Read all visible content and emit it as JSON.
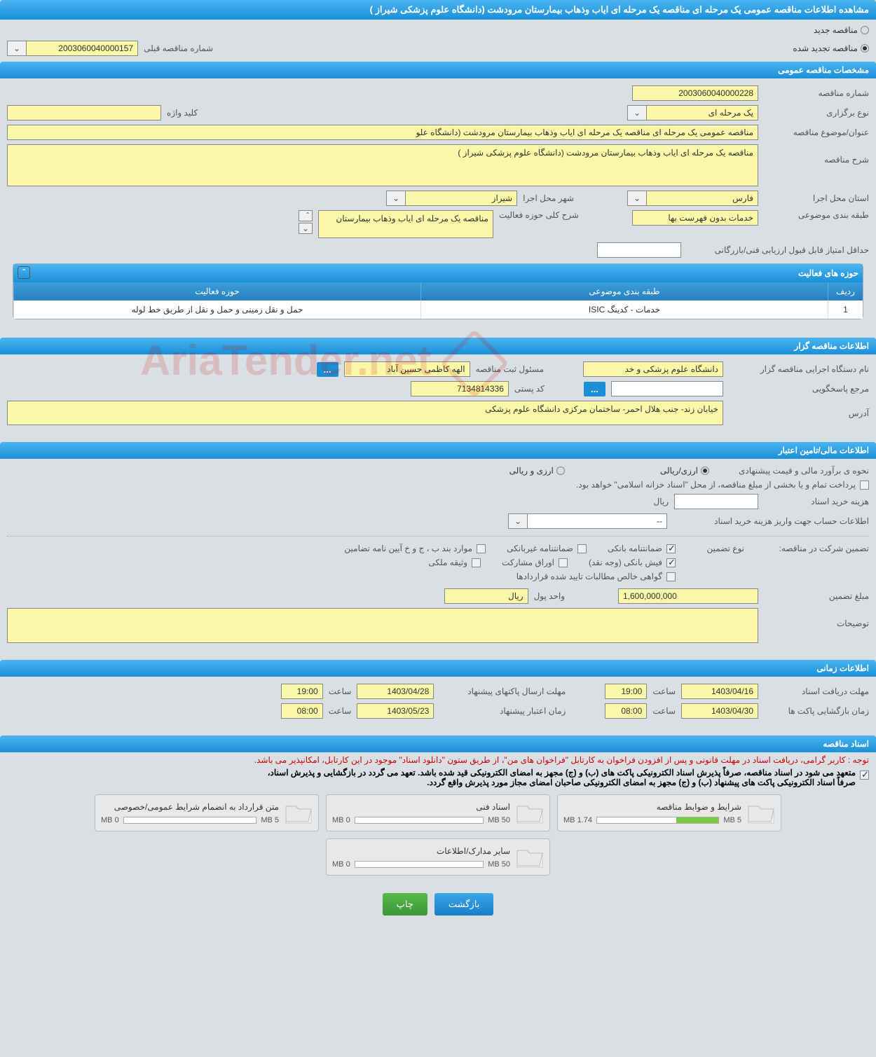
{
  "header": {
    "title": "مشاهده اطلاعات مناقصه عمومی یک مرحله ای مناقصه یک مرحله ای ایاب وذهاب بیمارستان مرودشت (دانشگاه علوم پزشکی شیراز )"
  },
  "top_radios": {
    "new_tender": "مناقصه جدید",
    "renewed_tender": "مناقصه تجدید شده",
    "selected": "renewed"
  },
  "prev_tender": {
    "label": "شماره مناقصه قبلی",
    "value": "2003060040000157"
  },
  "section_general": {
    "title": "مشخصات مناقصه عمومی",
    "tender_no_label": "شماره مناقصه",
    "tender_no": "2003060040000228",
    "holding_type_label": "نوع برگزاری",
    "holding_type": "یک مرحله ای",
    "keyword_label": "کلید واژه",
    "keyword": "",
    "subject_label": "عنوان/موضوع مناقصه",
    "subject": "مناقصه عمومی یک مرحله ای مناقصه یک مرحله ای  ایاب وذهاب  بیمارستان مرودشت  (دانشگاه علو",
    "desc_label": "شرح مناقصه",
    "desc": "مناقصه یک مرحله ای  ایاب وذهاب  بیمارستان مرودشت  (دانشگاه علوم پزشکی شیراز )",
    "province_label": "استان محل اجرا",
    "province": "فارس",
    "city_label": "شهر محل اجرا",
    "city": "شیراز",
    "classification_label": "طبقه بندی موضوعی",
    "classification": "خدمات بدون فهرست بها",
    "activity_desc_label": "شرح کلی حوزه فعالیت",
    "activity_desc": "مناقصه یک مرحله ای  ایاب وذهاب  بیمارستان",
    "min_score_label": "حداقل امتیاز قابل قبول ارزیابی فنی/بازرگانی",
    "min_score": ""
  },
  "activity_table": {
    "title": "حوزه های فعالیت",
    "col_radif": "ردیف",
    "col_tabaqe": "طبقه بندی موضوعی",
    "col_hoze": "حوزه فعالیت",
    "row": {
      "radif": "1",
      "tabaqe": "خدمات - کدینگ ISIC",
      "hoze": "حمل و نقل زمینی و حمل و نقل از طریق خط لوله"
    }
  },
  "section_organizer": {
    "title": "اطلاعات مناقصه گزار",
    "exec_label": "نام دستگاه اجرایی مناقصه گزار",
    "exec": "دانشگاه علوم پزشکی و خد",
    "responsible_label": "مسئول ثبت مناقصه",
    "responsible": "الهه کاظمی حسین آباد",
    "contact_label": "مرجع پاسخگویی",
    "contact": "",
    "postcode_label": "کد پستی",
    "postcode": "7134814336",
    "address_label": "آدرس",
    "address": "خیابان زند- جنب هلال احمر- ساختمان مرکزی دانشگاه علوم پزشکی"
  },
  "section_financial": {
    "title": "اطلاعات مالی/تامین اعتبار",
    "estimate_label": "نحوه ی برآورد مالی و قیمت پیشنهادی",
    "currency_rls": "ارزی/ریالی",
    "currency_foreign": "ارزی و ریالی",
    "payment_note": "پرداخت تمام و یا بخشی از مبلغ مناقصه، از محل \"اسناد خزانه اسلامی\" خواهد بود.",
    "doc_cost_label": "هزینه خرید اسناد",
    "doc_cost_unit": "ریال",
    "doc_cost": "",
    "account_label": "اطلاعات حساب جهت واریز هزینه خرید اسناد",
    "account": "--",
    "guarantee_label": "تضمین شرکت در مناقصه:",
    "guarantee_type_label": "نوع تضمین",
    "g1": "ضمانتنامه بانکی",
    "g2": "ضمانتنامه غیربانکی",
    "g3": "موارد بند ب ، ج و خ آیین نامه تضامین",
    "g4": "فیش بانکی (وجه نقد)",
    "g5": "اوراق مشارکت",
    "g6": "وثیقه ملکی",
    "g7": "گواهی خالص مطالبات تایید شده قراردادها",
    "guarantee_amount_label": "مبلغ تضمین",
    "guarantee_amount": "1,600,000,000",
    "money_unit_label": "واحد پول",
    "money_unit": "ریال",
    "notes_label": "توضیحات",
    "notes": ""
  },
  "section_time": {
    "title": "اطلاعات زمانی",
    "receive_deadline_label": "مهلت دریافت اسناد",
    "receive_deadline_date": "1403/04/16",
    "receive_deadline_time": "19:00",
    "send_deadline_label": "مهلت ارسال پاکتهای پیشنهاد",
    "send_deadline_date": "1403/04/28",
    "send_deadline_time": "19:00",
    "open_time_label": "زمان بازگشایی پاکت ها",
    "open_time_date": "1403/04/30",
    "open_time_time": "08:00",
    "validity_label": "زمان اعتبار پیشنهاد",
    "validity_date": "1403/05/23",
    "validity_time": "08:00",
    "time_label": "ساعت"
  },
  "section_docs": {
    "title": "اسناد مناقصه",
    "notice_red": "توجه : کاربر گرامی، دریافت اسناد در مهلت قانونی و پس از افزودن فراخوان به کارتابل \"فراخوان های من\"، از طریق ستون \"دانلود اسناد\" موجود در این کارتابل، امکانپذیر می باشد.",
    "notice_black1": "متعهد می شود در اسناد مناقصه، صرفاً پذیرش اسناد الکترونیکی پاکت های (ب) و (ج) مجهز به امضای الکترونیکی قید شده باشد. تعهد می گردد در بازگشایی و پذیرش اسناد،",
    "notice_black2": "صرفاً اسناد الکترونیکی پاکت های پیشنهاد (ب) و (ج) مجهز به امضای الکترونیکی صاحبان امضای مجاز مورد پذیرش واقع گردد.",
    "docs": [
      {
        "title": "شرایط و ضوابط مناقصه",
        "used": "1.74 MB",
        "total": "5 MB",
        "fill_pct": 35
      },
      {
        "title": "اسناد فنی",
        "used": "0 MB",
        "total": "50 MB",
        "fill_pct": 0
      },
      {
        "title": "متن قرارداد به انضمام شرایط عمومی/خصوصی",
        "used": "0 MB",
        "total": "5 MB",
        "fill_pct": 0
      },
      {
        "title": "سایر مدارک/اطلاعات",
        "used": "0 MB",
        "total": "50 MB",
        "fill_pct": 0
      }
    ]
  },
  "buttons": {
    "back": "بازگشت",
    "print": "چاپ"
  },
  "watermark": "AriaTender.net",
  "colors": {
    "header_grad_top": "#4ab5f0",
    "header_grad_bot": "#1a8fd8",
    "field_bg": "#faf8a8",
    "body_bg": "#d9dfe3",
    "progress_fill": "#7ac943"
  }
}
